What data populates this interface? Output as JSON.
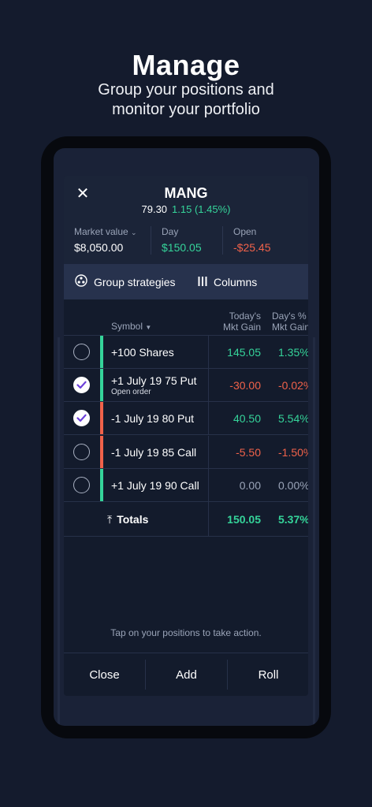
{
  "promo": {
    "headline": "Manage",
    "subline_1": "Group your positions and",
    "subline_2": "monitor your portfolio"
  },
  "modal": {
    "close_icon": "close-icon",
    "symbol": "MANG",
    "price": "79.30",
    "change": "1.15 (1.45%)",
    "stats": {
      "market_value_label": "Market value",
      "market_value": "$8,050.00",
      "day_label": "Day",
      "day_value": "$150.05",
      "open_label": "Open",
      "open_value": "-$25.45"
    },
    "toolbar": {
      "group_label": "Group strategies",
      "columns_label": "Columns"
    },
    "table": {
      "col_symbol": "Symbol",
      "col_gain_1": "Today's",
      "col_gain_2": "Mkt Gain",
      "col_pct_1": "Day's %",
      "col_pct_2": "Mkt Gain",
      "rows": [
        {
          "symbol": "+100 Shares",
          "sub": "",
          "gain": "145.05",
          "pct": "1.35%",
          "checked": false,
          "bar": "#35d49a",
          "gain_class": "pos",
          "pct_class": "pos"
        },
        {
          "symbol": "+1 July 19 75 Put",
          "sub": "Open order",
          "gain": "-30.00",
          "pct": "-0.02%",
          "checked": true,
          "bar": "#35d49a",
          "gain_class": "neg",
          "pct_class": "neg"
        },
        {
          "symbol": "-1 July 19 80 Put",
          "sub": "",
          "gain": "40.50",
          "pct": "5.54%",
          "checked": true,
          "bar": "#f0624a",
          "gain_class": "pos",
          "pct_class": "pos"
        },
        {
          "symbol": "-1 July 19 85 Call",
          "sub": "",
          "gain": "-5.50",
          "pct": "-1.50%",
          "checked": false,
          "bar": "#f0624a",
          "gain_class": "neg",
          "pct_class": "neg"
        },
        {
          "symbol": "+1 July 19 90 Call",
          "sub": "",
          "gain": "0.00",
          "pct": "0.00%",
          "checked": false,
          "bar": "#35d49a",
          "gain_class": "neu",
          "pct_class": "neu"
        }
      ],
      "totals_label": "Totals",
      "totals_gain": "150.05",
      "totals_pct": "5.37%"
    },
    "hint": "Tap on your positions to take action.",
    "footer": {
      "close": "Close",
      "add": "Add",
      "roll": "Roll"
    }
  },
  "colors": {
    "positive": "#35d49a",
    "negative": "#f0624a",
    "background": "#141b2d"
  }
}
